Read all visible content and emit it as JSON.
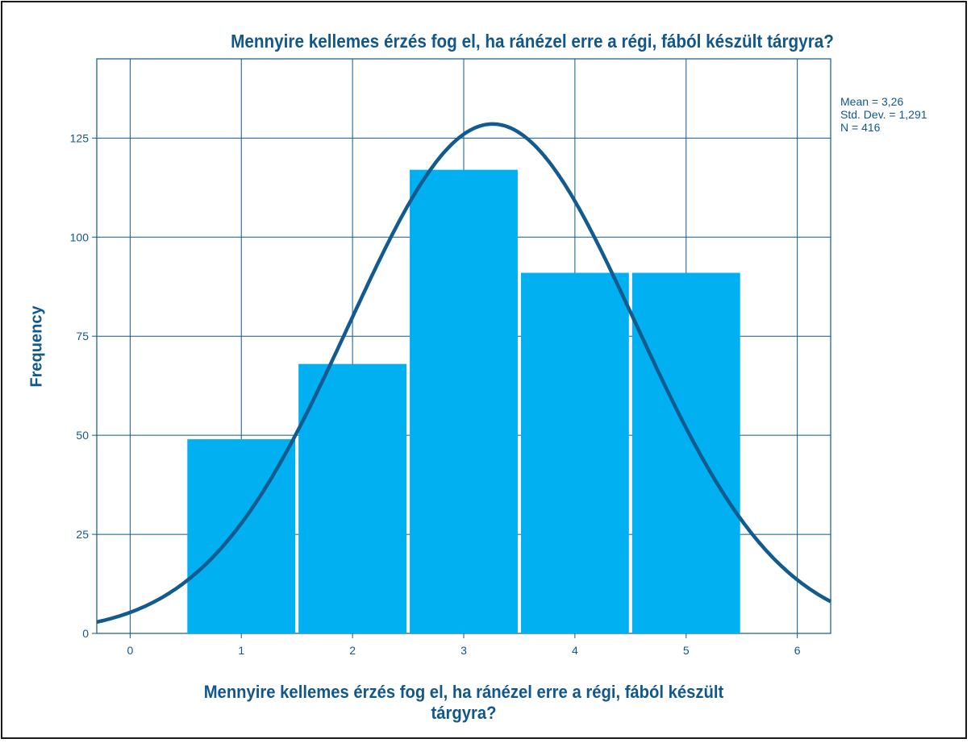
{
  "chart_data": {
    "type": "bar",
    "title": "Mennyire kellemes érzés fog el, ha ránézel erre a régi, fából készült tárgyra?",
    "xlabel_line1": "Mennyire kellemes érzés fog el, ha ránézel erre a régi, fából készült",
    "xlabel_line2": "tárgyra?",
    "ylabel": "Frequency",
    "categories": [
      1,
      2,
      3,
      4,
      5
    ],
    "values": [
      49,
      68,
      117,
      91,
      91
    ],
    "xlim": [
      -0.3,
      6.3
    ],
    "ylim": [
      0,
      145
    ],
    "x_ticks": [
      "0",
      "1",
      "2",
      "3",
      "4",
      "5",
      "6"
    ],
    "y_ticks": [
      "0",
      "25",
      "50",
      "75",
      "100",
      "125"
    ],
    "grid": true,
    "normal_curve": {
      "mean": 3.26,
      "std": 1.291,
      "n": 416,
      "bin_width": 1
    },
    "stats": {
      "mean": "Mean = 3,26",
      "std": "Std. Dev. = 1,291",
      "n": "N = 416"
    },
    "colors": {
      "bar": "#00b0f0",
      "curve": "#135b8f",
      "grid": "#12578a",
      "text": "#12578a"
    }
  }
}
